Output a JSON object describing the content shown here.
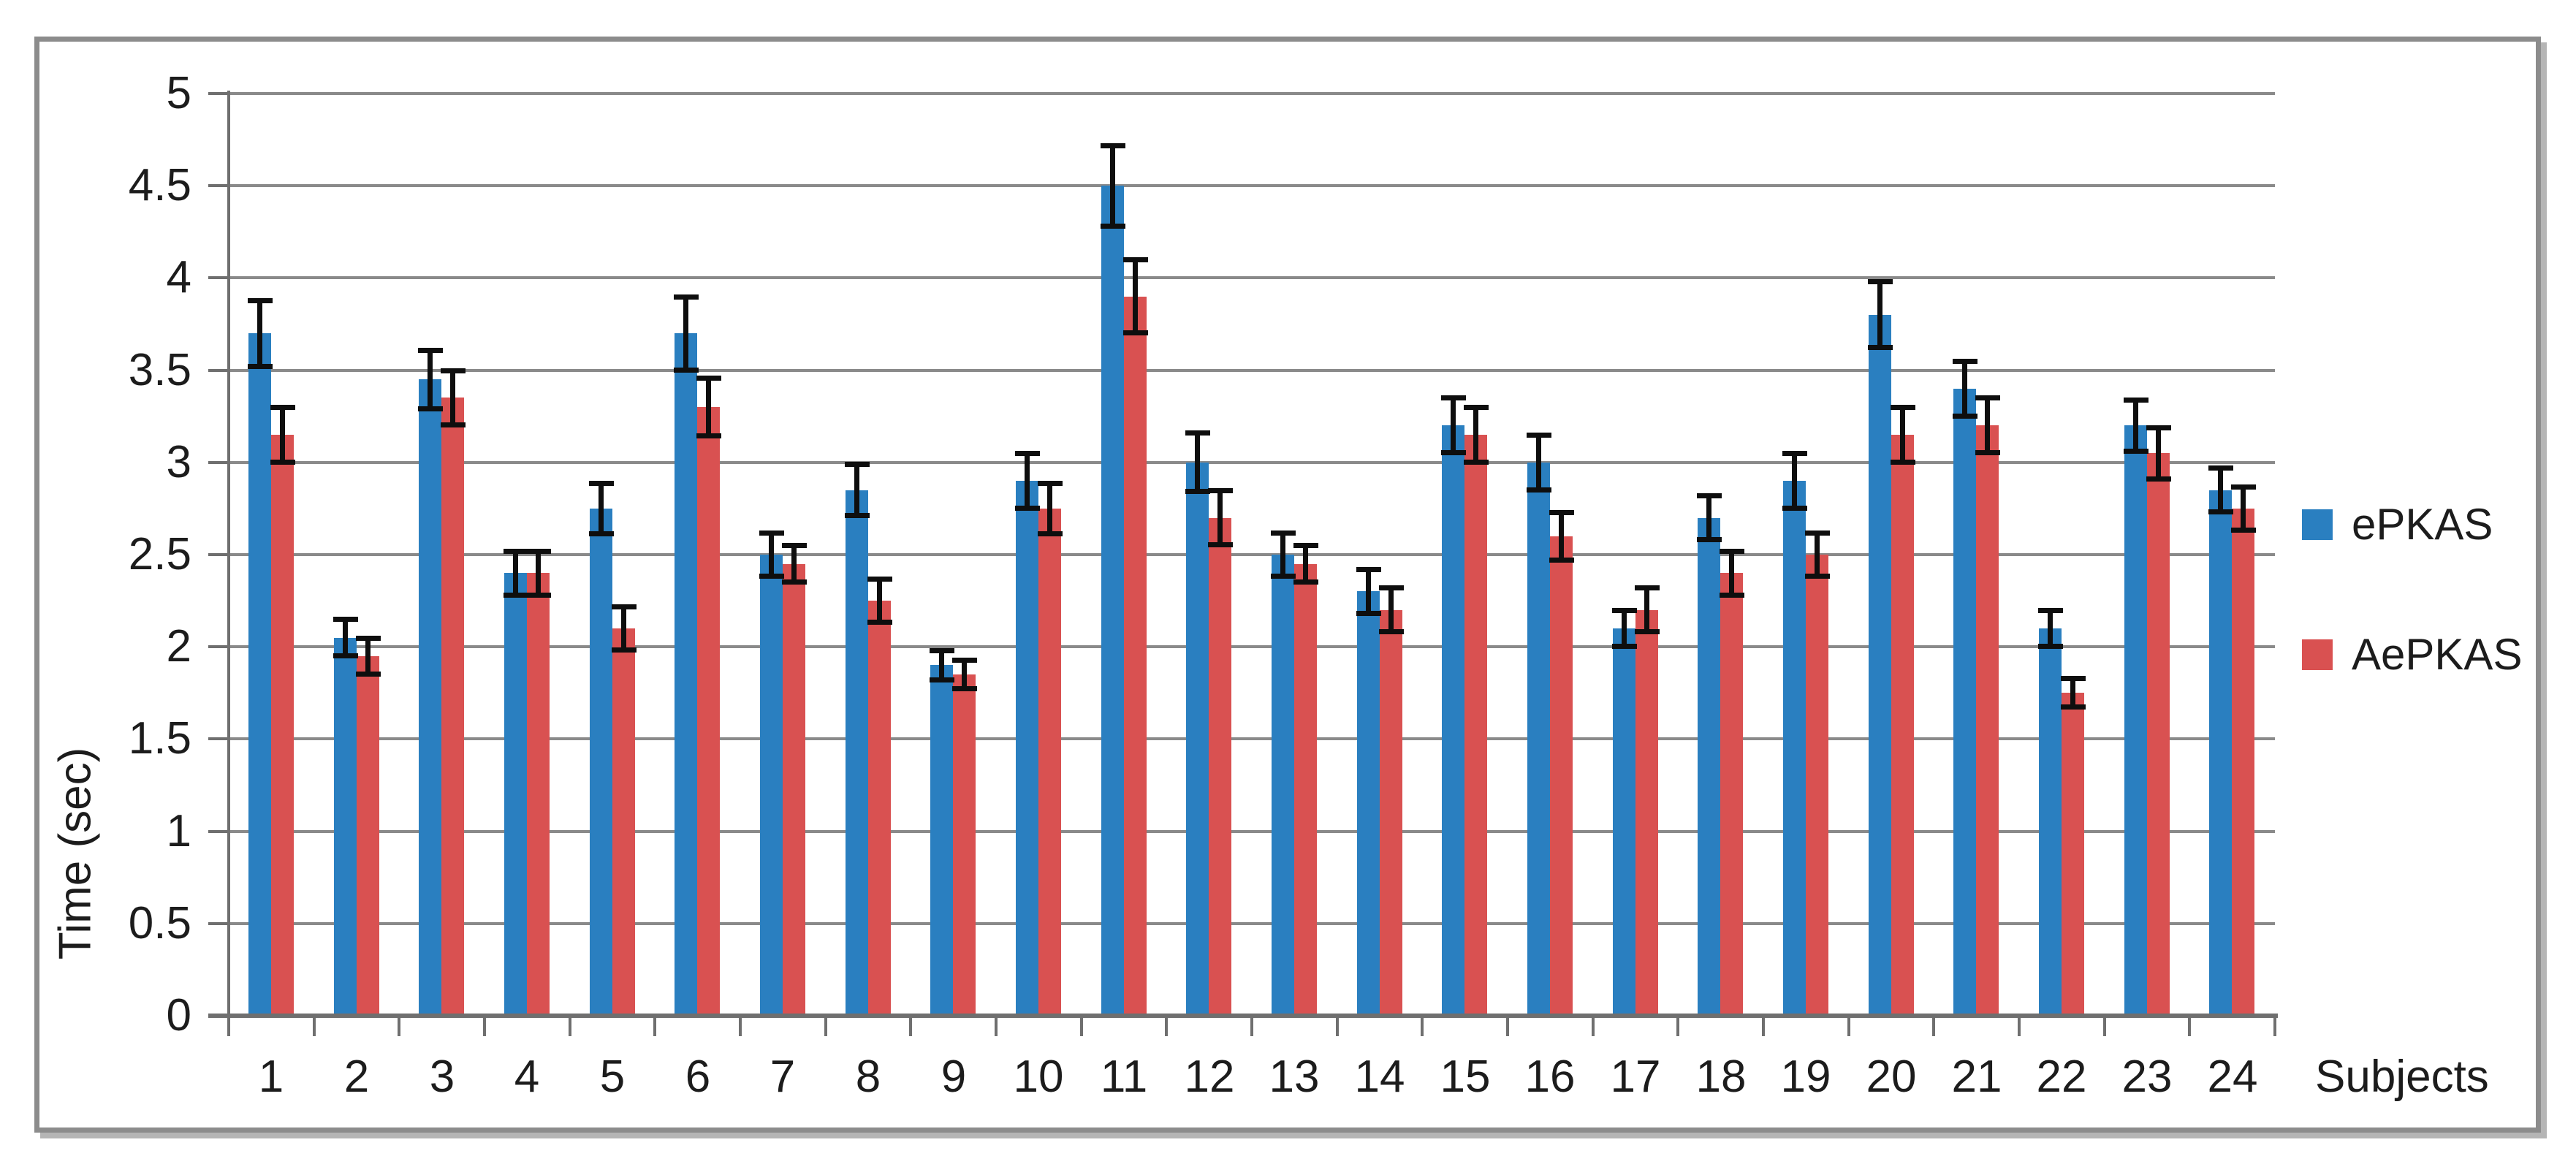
{
  "chart_data": {
    "type": "bar",
    "title": "",
    "xlabel": "Subjects",
    "ylabel": "Time (sec)",
    "categories": [
      "1",
      "2",
      "3",
      "4",
      "5",
      "6",
      "7",
      "8",
      "9",
      "10",
      "11",
      "12",
      "13",
      "14",
      "15",
      "16",
      "17",
      "18",
      "19",
      "20",
      "21",
      "22",
      "23",
      "24"
    ],
    "y_tick_labels": [
      "0",
      "0.5",
      "1",
      "1.5",
      "2",
      "2.5",
      "3",
      "3.5",
      "4",
      "4.5",
      "5"
    ],
    "ylim": [
      0,
      5
    ],
    "ytick_step": 0.5,
    "grid": "horizontal",
    "legend_position": "right",
    "error_bars": true,
    "series": [
      {
        "name": "ePKAS",
        "color": "#2A7FC0",
        "values": [
          3.7,
          2.05,
          3.45,
          2.4,
          2.75,
          3.7,
          2.5,
          2.85,
          1.9,
          2.9,
          4.5,
          3.0,
          2.5,
          2.3,
          3.2,
          3.0,
          2.1,
          2.7,
          2.9,
          3.8,
          3.4,
          2.1,
          3.2,
          2.85
        ],
        "errors": [
          0.18,
          0.1,
          0.16,
          0.12,
          0.14,
          0.2,
          0.12,
          0.14,
          0.08,
          0.15,
          0.22,
          0.16,
          0.12,
          0.12,
          0.15,
          0.15,
          0.1,
          0.12,
          0.15,
          0.18,
          0.15,
          0.1,
          0.14,
          0.12
        ]
      },
      {
        "name": "AePKAS",
        "color": "#D95151",
        "values": [
          3.15,
          1.95,
          3.35,
          2.4,
          2.1,
          3.3,
          2.45,
          2.25,
          1.85,
          2.75,
          3.9,
          2.7,
          2.45,
          2.2,
          3.15,
          2.6,
          2.2,
          2.4,
          2.5,
          3.15,
          3.2,
          1.75,
          3.05,
          2.75
        ],
        "errors": [
          0.15,
          0.1,
          0.15,
          0.12,
          0.12,
          0.16,
          0.1,
          0.12,
          0.08,
          0.14,
          0.2,
          0.15,
          0.1,
          0.12,
          0.15,
          0.13,
          0.12,
          0.12,
          0.12,
          0.15,
          0.15,
          0.08,
          0.14,
          0.12
        ]
      }
    ]
  },
  "legend": {
    "items": [
      {
        "label": "ePKAS"
      },
      {
        "label": "AePKAS"
      }
    ]
  },
  "style_colors": {
    "gridline": "#8a8a8a",
    "axis": "#6f6f6f",
    "error_bar": "#0e0e0e",
    "border": "#8c8c8c",
    "text": "#1c1c1c"
  }
}
